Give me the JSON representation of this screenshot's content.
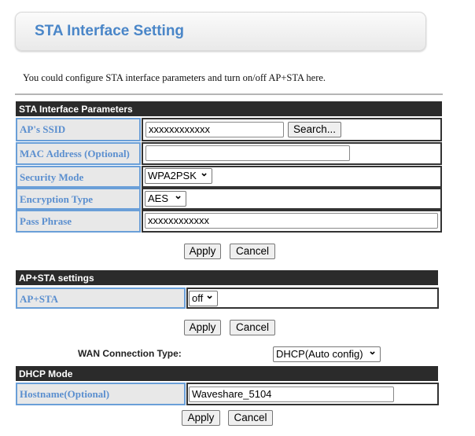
{
  "header": {
    "title": "STA Interface Setting"
  },
  "intro": "You could configure STA interface parameters and turn on/off AP+STA here.",
  "sta": {
    "title": "STA Interface Parameters",
    "ssid_label": "AP's SSID",
    "ssid_value": "xxxxxxxxxxxx",
    "search_label": "Search...",
    "mac_label": "MAC Address (Optional)",
    "mac_value": "",
    "security_label": "Security Mode",
    "security_value": "WPA2PSK",
    "encryption_label": "Encryption Type",
    "encryption_value": "AES",
    "pass_label": "Pass Phrase",
    "pass_value": "xxxxxxxxxxxx",
    "apply": "Apply",
    "cancel": "Cancel"
  },
  "apsta": {
    "title": "AP+STA settings",
    "label": "AP+STA",
    "value": "off",
    "apply": "Apply",
    "cancel": "Cancel"
  },
  "wan": {
    "label": "WAN Connection Type:",
    "value": "DHCP(Auto config)"
  },
  "dhcp": {
    "title": "DHCP Mode",
    "hostname_label": "Hostname(Optional)",
    "hostname_value": "Waveshare_5104",
    "apply": "Apply",
    "cancel": "Cancel"
  },
  "colors": {
    "accent": "#4a86c8",
    "bar": "#2b2b2b",
    "label_bg": "#e8e8e8"
  }
}
